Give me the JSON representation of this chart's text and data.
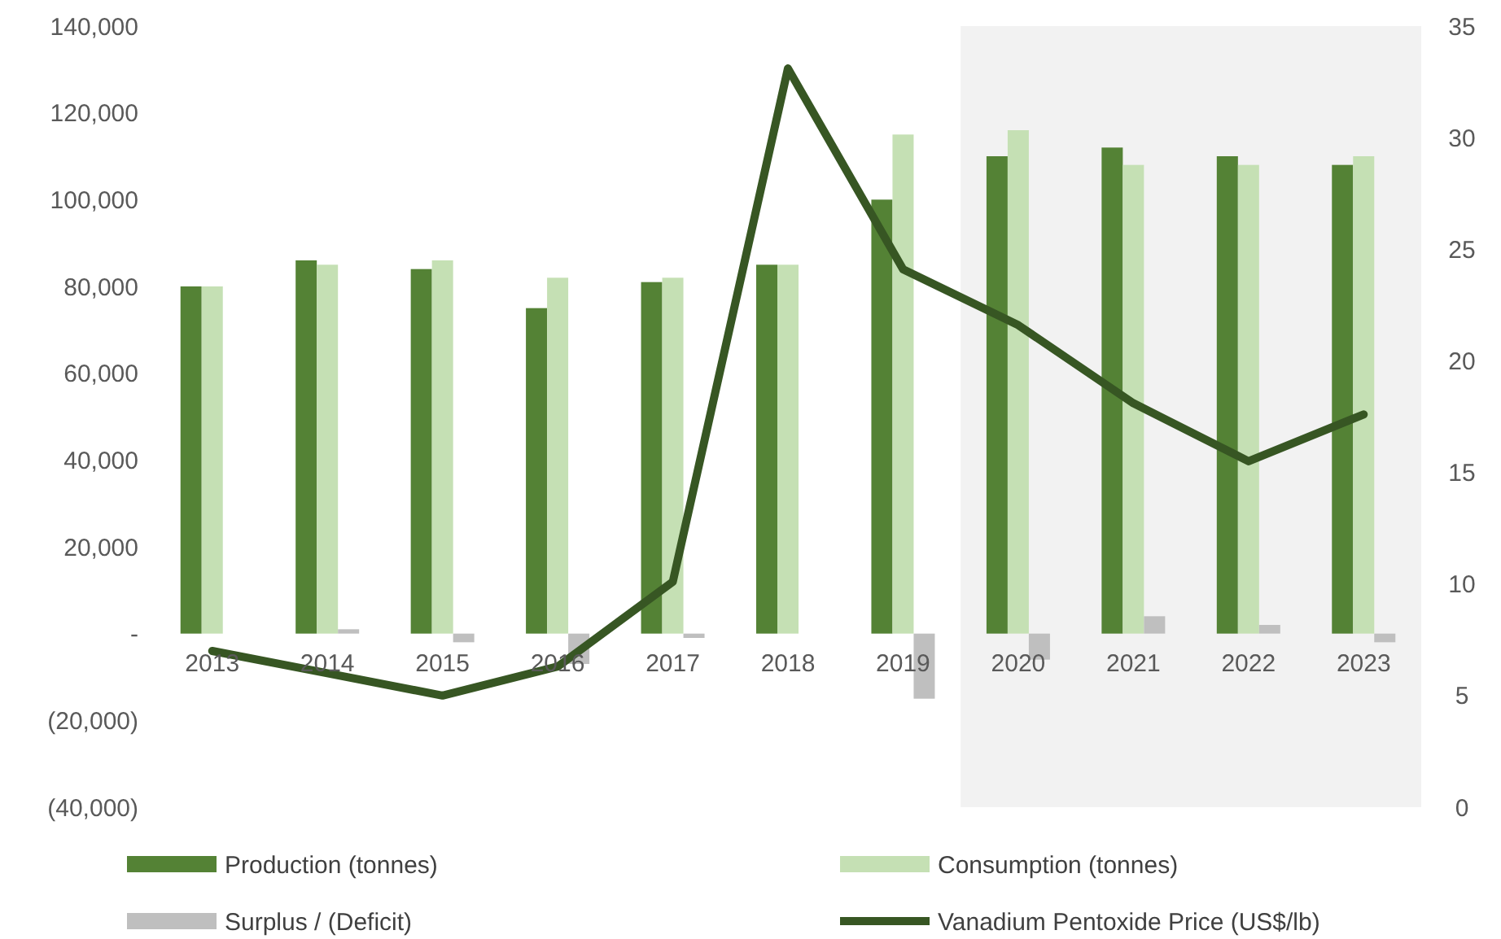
{
  "chart_data": {
    "type": "bar",
    "categories": [
      "2013",
      "2014",
      "2015",
      "2016",
      "2017",
      "2018",
      "2019",
      "2020",
      "2021",
      "2022",
      "2023"
    ],
    "series": [
      {
        "name": "Production (tonnes)",
        "color": "#548235",
        "values": [
          80000,
          86000,
          84000,
          75000,
          81000,
          85000,
          100000,
          110000,
          112000,
          110000,
          108000
        ]
      },
      {
        "name": "Consumption (tonnes)",
        "color": "#c5e0b4",
        "values": [
          80000,
          85000,
          86000,
          82000,
          82000,
          85000,
          115000,
          116000,
          108000,
          108000,
          110000
        ]
      },
      {
        "name": "Surplus / (Deficit)",
        "color": "#bfbfbf",
        "values": [
          0,
          1000,
          -2000,
          -7000,
          -1000,
          0,
          -15000,
          -6000,
          4000,
          2000,
          -2000
        ]
      },
      {
        "name": "Vanadium Pentoxide Price (US$/lb)",
        "type": "line",
        "axis": "y2",
        "color": "#375623",
        "values": [
          7,
          6,
          5,
          6.3,
          10.1,
          33.1,
          24.1,
          21.6,
          18.1,
          15.5,
          17.6
        ]
      }
    ],
    "ylim": [
      -40000,
      140000
    ],
    "yticks": [
      {
        "value": -40000,
        "label": "(40,000)"
      },
      {
        "value": -20000,
        "label": "(20,000)"
      },
      {
        "value": 0,
        "label": "-"
      },
      {
        "value": 20000,
        "label": "20,000"
      },
      {
        "value": 40000,
        "label": "40,000"
      },
      {
        "value": 60000,
        "label": "60,000"
      },
      {
        "value": 80000,
        "label": "80,000"
      },
      {
        "value": 100000,
        "label": "100,000"
      },
      {
        "value": 120000,
        "label": "120,000"
      },
      {
        "value": 140000,
        "label": "140,000"
      }
    ],
    "y2lim": [
      0,
      35
    ],
    "y2ticks": [
      0,
      5,
      10,
      15,
      20,
      25,
      30,
      35
    ],
    "bands": [
      {
        "axis": "x",
        "from": "2020",
        "to": "2023",
        "color": "#f2f2f2"
      }
    ],
    "grid": false,
    "legend": "bottom",
    "marker": "none",
    "line_style": "solid"
  }
}
